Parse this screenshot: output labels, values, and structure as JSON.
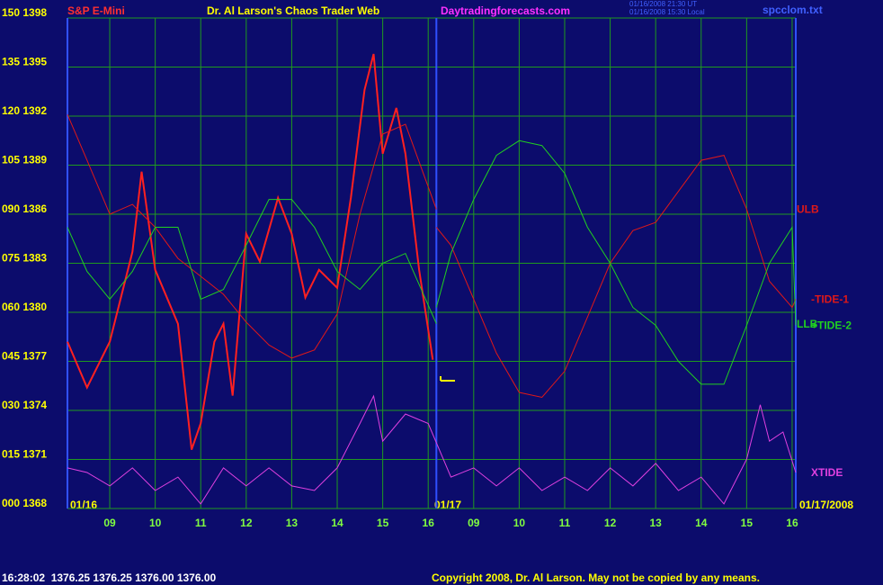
{
  "chart_data": {
    "type": "line",
    "instrument": "S&P E-Mini",
    "title": "Dr. Al Larson's Chaos Trader Web",
    "site": "Daytradingforecasts.com",
    "timestamps": [
      "01/16/2008 21:30 UT",
      "01/16/2008 15:30 Local"
    ],
    "file": "spcclom.txt",
    "date_labels": [
      "01/16",
      "01/17",
      "01/17/2008"
    ],
    "quote": "16:28:02  1376.25 1376.25 1376.00 1376.00",
    "copyright": "Copyright 2008, Dr. Al Larson. May not be copied by any means.",
    "xlim": [
      8.07,
      24.08
    ],
    "xticks": [
      {
        "value": 9,
        "label": "09"
      },
      10,
      11,
      12,
      13,
      14,
      15,
      16,
      {
        "value": 17,
        "label": "09"
      },
      {
        "value": 18,
        "label": "10"
      },
      {
        "value": 19,
        "label": "11"
      },
      {
        "value": 20,
        "label": "12"
      },
      {
        "value": 21,
        "label": "13"
      },
      {
        "value": 22,
        "label": "14"
      },
      {
        "value": 23,
        "label": "15"
      },
      {
        "value": 24,
        "label": "16"
      }
    ],
    "day_break": 16.18,
    "ylim": [
      1368,
      1398
    ],
    "yticks": [
      {
        "value": 1398,
        "label": "150 1398"
      },
      {
        "value": 1395,
        "label": "135 1395"
      },
      {
        "value": 1392,
        "label": "120 1392"
      },
      {
        "value": 1389,
        "label": "105 1389"
      },
      {
        "value": 1386,
        "label": "090 1386"
      },
      {
        "value": 1383,
        "label": "075 1383"
      },
      {
        "value": 1380,
        "label": "060 1380"
      },
      {
        "value": 1377,
        "label": "045 1377"
      },
      {
        "value": 1374,
        "label": "030 1374"
      },
      {
        "value": 1371,
        "label": "015 1371"
      },
      {
        "value": 1368,
        "label": "000 1368"
      }
    ],
    "y2lim": [
      0,
      150
    ],
    "grid": true,
    "series": [
      {
        "color": "#ff2020",
        "x": [
          8.07,
          8.5,
          9.0,
          9.5,
          9.7,
          10.0,
          10.5,
          10.8,
          11.0,
          11.3,
          11.5,
          11.7,
          12.0,
          12.3,
          12.7,
          13.0,
          13.3,
          13.6,
          14.0,
          14.3,
          14.6,
          14.8,
          15.0,
          15.3,
          15.5,
          15.8,
          16.1
        ],
        "values": [
          1378.2,
          1375.4,
          1378.2,
          1383.7,
          1388.6,
          1382.6,
          1379.3,
          1371.6,
          1373.2,
          1378.2,
          1379.3,
          1374.9,
          1384.8,
          1383.1,
          1387.0,
          1384.8,
          1380.9,
          1382.6,
          1381.5,
          1387.0,
          1393.6,
          1395.8,
          1389.7,
          1392.5,
          1389.7,
          1382.6,
          1377.1
        ]
      },
      {
        "name": "ULB",
        "color": "#e01818",
        "x": [
          8.07,
          8.5,
          9.0,
          9.5,
          10.0,
          10.5,
          11.0,
          11.5,
          12.0,
          12.5,
          13.0,
          13.5,
          14.0,
          14.5,
          15.0,
          15.5,
          16.18
        ],
        "values": [
          1392.1,
          1389.3,
          1386.0,
          1386.6,
          1385.2,
          1383.3,
          1382.2,
          1381.1,
          1379.4,
          1378.0,
          1377.2,
          1377.7,
          1379.9,
          1386.0,
          1390.9,
          1391.5,
          1386.3
        ]
      },
      {
        "name": "-TIDE-1",
        "color": "#e01818",
        "x": [
          16.18,
          16.5,
          17.0,
          17.5,
          18.0,
          18.5,
          19.0,
          19.5,
          20.0,
          20.5,
          21.0,
          21.5,
          22.0,
          22.5,
          23.0,
          23.5,
          24.0,
          24.08
        ],
        "values": [
          1385.2,
          1384.1,
          1380.8,
          1377.5,
          1375.1,
          1374.8,
          1376.4,
          1379.7,
          1383.0,
          1385.0,
          1385.5,
          1387.4,
          1389.3,
          1389.6,
          1386.3,
          1381.9,
          1380.3,
          1380.8
        ]
      },
      {
        "name": "LLB",
        "color": "#20d020",
        "x": [
          8.07,
          8.5,
          9.0,
          9.5,
          10.0,
          10.5,
          11.0,
          11.5,
          12.0,
          12.5,
          13.0,
          13.5,
          14.0,
          14.5,
          15.0,
          15.5,
          16.18
        ],
        "values": [
          1385.2,
          1382.5,
          1380.8,
          1382.5,
          1385.2,
          1385.2,
          1380.8,
          1381.4,
          1384.1,
          1386.9,
          1386.9,
          1385.2,
          1382.5,
          1381.4,
          1383.0,
          1383.6,
          1379.3
        ]
      },
      {
        "name": "+TIDE-2",
        "color": "#20d020",
        "x": [
          16.18,
          16.5,
          17.0,
          17.5,
          18.0,
          18.5,
          19.0,
          19.5,
          20.0,
          20.5,
          21.0,
          21.5,
          22.0,
          22.5,
          23.0,
          23.5,
          24.0,
          24.08
        ],
        "values": [
          1380.3,
          1383.6,
          1386.9,
          1389.6,
          1390.5,
          1390.2,
          1388.5,
          1385.2,
          1383.0,
          1380.3,
          1379.2,
          1377.0,
          1375.6,
          1375.6,
          1379.2,
          1383.0,
          1385.2,
          1379.2
        ]
      },
      {
        "name": "XTIDE",
        "color": "#e040e0",
        "axis": "y2",
        "x": [
          8.07,
          8.5,
          9.0,
          9.5,
          10.0,
          10.5,
          11.0,
          11.5,
          12.0,
          12.5,
          13.0,
          13.5,
          14.0,
          14.5,
          14.8,
          15.0,
          15.5,
          16.0,
          16.5,
          17.0,
          17.5,
          18.0,
          18.5,
          19.0,
          19.5,
          20.0,
          20.5,
          21.0,
          21.5,
          22.0,
          22.5,
          23.0,
          23.3,
          23.5,
          23.8,
          24.08
        ],
        "values": [
          12.4,
          11,
          6.9,
          12.4,
          5.5,
          9.6,
          1.4,
          12.4,
          6.9,
          12.4,
          6.9,
          5.5,
          12.4,
          26,
          34.4,
          20.6,
          28.9,
          26,
          9.6,
          12.4,
          6.9,
          12.4,
          5.5,
          9.6,
          5.5,
          12.4,
          6.9,
          13.8,
          5.5,
          9.6,
          1.4,
          15.1,
          31.7,
          20.6,
          23.4,
          11
        ]
      }
    ]
  }
}
